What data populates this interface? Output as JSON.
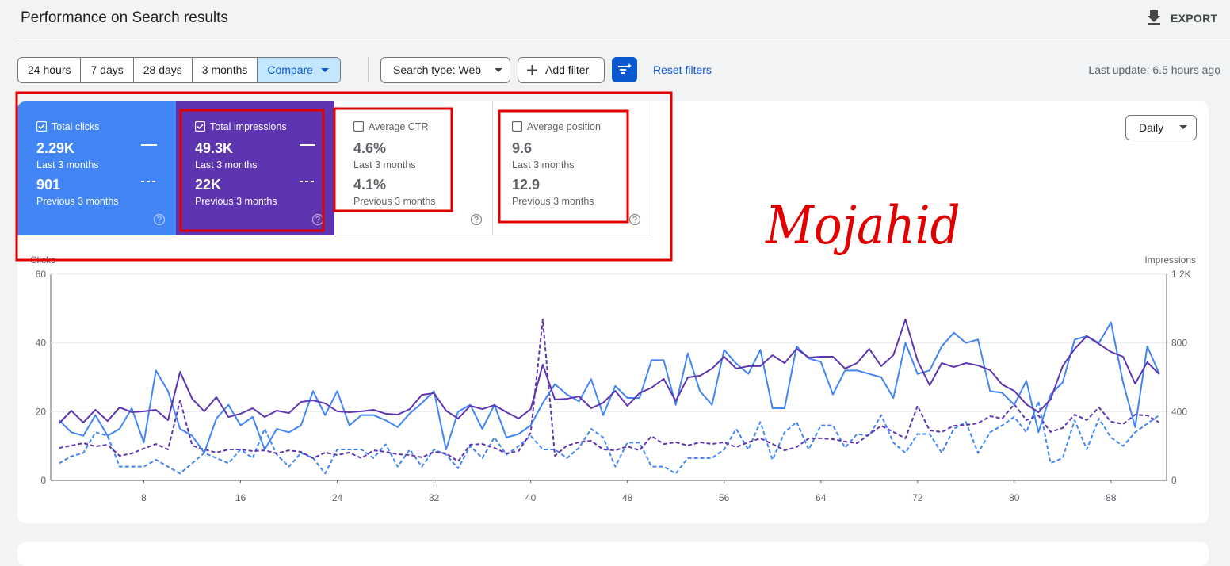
{
  "header": {
    "title": "Performance on Search results",
    "export": "EXPORT"
  },
  "toolbar": {
    "date_ranges": [
      "24 hours",
      "7 days",
      "28 days",
      "3 months",
      "Compare"
    ],
    "search_type": "Search type: Web",
    "add_filter": "Add filter",
    "reset_filters": "Reset filters",
    "last_update": "Last update: 6.5 hours ago"
  },
  "metrics": [
    {
      "label": "Total clicks",
      "checked": true,
      "color": "#4285f4",
      "current": "2.29K",
      "current_period": "Last 3 months",
      "previous": "901",
      "previous_period": "Previous 3 months"
    },
    {
      "label": "Total impressions",
      "checked": true,
      "color": "#5e35b1",
      "current": "49.3K",
      "current_period": "Last 3 months",
      "previous": "22K",
      "previous_period": "Previous 3 months"
    },
    {
      "label": "Average CTR",
      "checked": false,
      "current": "4.6%",
      "current_period": "Last 3 months",
      "previous": "4.1%",
      "previous_period": "Previous 3 months"
    },
    {
      "label": "Average position",
      "checked": false,
      "current": "9.6",
      "current_period": "Last 3 months",
      "previous": "12.9",
      "previous_period": "Previous 3 months"
    }
  ],
  "granularity": "Daily",
  "annotation": "Mojahid",
  "chart_data": {
    "type": "line",
    "y_label": "Clicks",
    "y2_label": "Impressions",
    "x": [
      1,
      2,
      3,
      4,
      5,
      6,
      7,
      8,
      9,
      10,
      11,
      12,
      13,
      14,
      15,
      16,
      17,
      18,
      19,
      20,
      21,
      22,
      23,
      24,
      25,
      26,
      27,
      28,
      29,
      30,
      31,
      32,
      33,
      34,
      35,
      36,
      37,
      38,
      39,
      40,
      41,
      42,
      43,
      44,
      45,
      46,
      47,
      48,
      49,
      50,
      51,
      52,
      53,
      54,
      55,
      56,
      57,
      58,
      59,
      60,
      61,
      62,
      63,
      64,
      65,
      66,
      67,
      68,
      69,
      70,
      71,
      72,
      73,
      74,
      75,
      76,
      77,
      78,
      79,
      80,
      81,
      82,
      83,
      84,
      85,
      86,
      87,
      88,
      89,
      90,
      91,
      92
    ],
    "xlim": [
      0.3,
      92.6
    ],
    "xticks": [
      8,
      16,
      24,
      32,
      40,
      48,
      56,
      64,
      72,
      80,
      88
    ],
    "ylim": [
      0,
      60
    ],
    "yticks": [
      0,
      20,
      40,
      60
    ],
    "y2lim": [
      0,
      1200
    ],
    "y2ticks": [
      0,
      400,
      800,
      {
        "value": 1200,
        "label": "1.2K"
      }
    ],
    "grid": true,
    "series": [
      {
        "color": "#4285f4",
        "dashed": false,
        "values": [
          17.5,
          14,
          13,
          19,
          13,
          15,
          21,
          11,
          32,
          26,
          15,
          13,
          8,
          18,
          22,
          16,
          18.5,
          9,
          15,
          14,
          16,
          26,
          19,
          26,
          16,
          19,
          19,
          17.5,
          15.5,
          19.5,
          22.5,
          26,
          9,
          20,
          22,
          15,
          22,
          12.5,
          13.5,
          16,
          22.5,
          28,
          25,
          23,
          29.5,
          19,
          27.5,
          24,
          24,
          35,
          35,
          22,
          37,
          26,
          22,
          38,
          34,
          31,
          38,
          21,
          21,
          39,
          35.5,
          34.5,
          25,
          32,
          32,
          31,
          30,
          24,
          40,
          31,
          32,
          39,
          43,
          40,
          41,
          26,
          25.5,
          22,
          29,
          14,
          25,
          28.5,
          41,
          42,
          40,
          46,
          28.5,
          15.5,
          39,
          31
        ]
      },
      {
        "color": "#4285f4",
        "dashed": true,
        "values": [
          5,
          7,
          8,
          14,
          13,
          4,
          4,
          4,
          6,
          4,
          2,
          5,
          8,
          6.5,
          5,
          9,
          6.5,
          15,
          7.5,
          4,
          8,
          6.5,
          2,
          9,
          9,
          9,
          6.5,
          10.5,
          4,
          9,
          4,
          9,
          7.5,
          3.5,
          10,
          6.5,
          12.5,
          7.5,
          10,
          13,
          9,
          9,
          6.5,
          9.5,
          15,
          12.5,
          4,
          11,
          11,
          4,
          4,
          2,
          6.5,
          6.5,
          6.5,
          9,
          15,
          9,
          17,
          6,
          14,
          17,
          9,
          16,
          16,
          9.5,
          13.5,
          13,
          19,
          11,
          8,
          13.5,
          13.5,
          8,
          15,
          17,
          8,
          14,
          16,
          18.5,
          14,
          23,
          5,
          6.5,
          17.5,
          9,
          18,
          12.5,
          10,
          14,
          16.5,
          19
        ]
      },
      {
        "color": "#5e35b1",
        "dashed": false,
        "axis": "y2",
        "values": [
          332,
          406,
          337,
          411,
          346,
          425,
          397,
          402,
          411,
          351,
          632,
          475,
          402,
          485,
          369,
          388,
          420,
          369,
          406,
          392,
          457,
          466,
          448,
          402,
          397,
          402,
          411,
          388,
          383,
          415,
          498,
          508,
          406,
          360,
          434,
          415,
          438,
          397,
          360,
          415,
          674,
          471,
          475,
          489,
          420,
          452,
          521,
          434,
          508,
          540,
          591,
          462,
          600,
          609,
          651,
          720,
          651,
          665,
          665,
          729,
          683,
          766,
          715,
          720,
          720,
          651,
          683,
          766,
          665,
          729,
          937,
          697,
          554,
          683,
          660,
          683,
          669,
          642,
          558,
          521,
          443,
          397,
          471,
          665,
          766,
          840,
          794,
          748,
          720,
          563,
          688,
          618
        ]
      },
      {
        "color": "#5e35b1",
        "dashed": true,
        "axis": "y2",
        "values": [
          189,
          203,
          217,
          198,
          208,
          143,
          157,
          185,
          212,
          180,
          466,
          203,
          180,
          162,
          180,
          180,
          171,
          175,
          157,
          175,
          166,
          129,
          162,
          148,
          162,
          129,
          175,
          166,
          152,
          148,
          134,
          166,
          157,
          111,
          208,
          212,
          189,
          157,
          171,
          277,
          937,
          143,
          203,
          222,
          231,
          180,
          175,
          198,
          175,
          258,
          212,
          222,
          203,
          222,
          212,
          222,
          194,
          222,
          245,
          212,
          175,
          194,
          245,
          245,
          240,
          226,
          217,
          268,
          318,
          282,
          245,
          434,
          291,
          282,
          318,
          323,
          332,
          374,
          360,
          443,
          351,
          378,
          282,
          305,
          383,
          351,
          425,
          342,
          328,
          383,
          378,
          337
        ]
      }
    ]
  }
}
